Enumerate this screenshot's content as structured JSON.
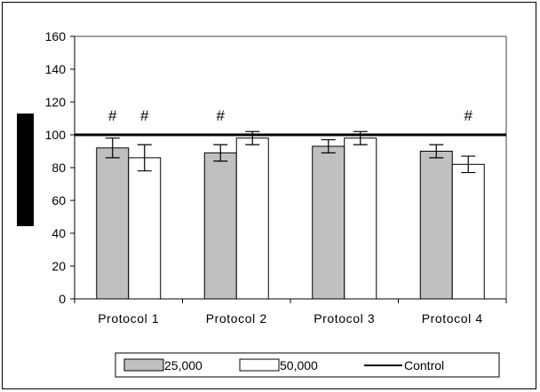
{
  "chart_data": {
    "type": "bar",
    "title": "",
    "xlabel": "",
    "ylabel": "",
    "ylim": [
      0,
      160
    ],
    "yticks": [
      0,
      20,
      40,
      60,
      80,
      100,
      120,
      140,
      160
    ],
    "grid": false,
    "categories": [
      "Protocol 1",
      "Protocol 2",
      "Protocol 3",
      "Protocol 4"
    ],
    "series": [
      {
        "name": "25,000",
        "values": [
          92,
          89,
          93,
          90
        ],
        "errors": [
          6,
          5,
          4,
          4
        ],
        "color": "#c0c0c0"
      },
      {
        "name": "50,000",
        "values": [
          86,
          98,
          98,
          82
        ],
        "errors": [
          8,
          4,
          4,
          5
        ],
        "color": "#ffffff"
      }
    ],
    "reference_line": {
      "name": "Control",
      "value": 100,
      "color": "#000000"
    },
    "annotations": [
      {
        "text": "#",
        "category": "Protocol 1",
        "series": "25,000",
        "y": 112
      },
      {
        "text": "#",
        "category": "Protocol 1",
        "series": "50,000",
        "y": 112
      },
      {
        "text": "#",
        "category": "Protocol 2",
        "series": "25,000",
        "y": 112
      },
      {
        "text": "#",
        "category": "Protocol 4",
        "series": "50,000",
        "y": 112
      }
    ],
    "legend_position": "bottom"
  }
}
